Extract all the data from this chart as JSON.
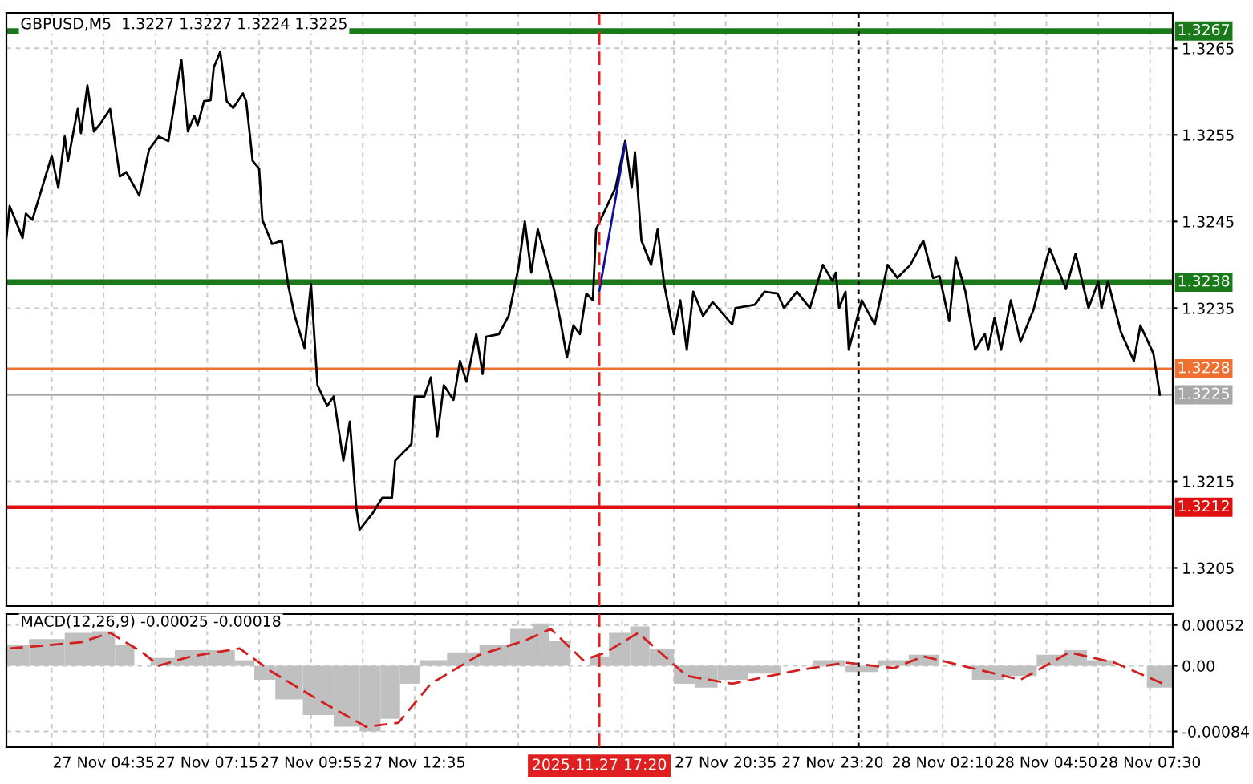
{
  "chart_data": [
    {
      "type": "line",
      "title": "GBPUSD,M5  1.3227 1.3227 1.3224 1.3225",
      "tick_labels": "y",
      "grid": true,
      "xlim": [
        "2025-11-27T02:05",
        "2025-11-28T08:05"
      ],
      "ylim": [
        1.32006,
        1.32691
      ],
      "xticks": [
        {
          "value": "2025-11-27T03:15",
          "label": null
        },
        {
          "value": "2025-11-27T04:35",
          "label": null
        },
        {
          "value": "2025-11-27T05:55",
          "label": null
        },
        {
          "value": "2025-11-27T07:15",
          "label": null
        },
        {
          "value": "2025-11-27T08:35",
          "label": null
        },
        {
          "value": "2025-11-27T09:55",
          "label": null
        },
        {
          "value": "2025-11-27T11:15",
          "label": null
        },
        {
          "value": "2025-11-27T12:35",
          "label": null
        },
        {
          "value": "2025-11-27T13:55",
          "label": null
        },
        {
          "value": "2025-11-27T15:15",
          "label": null
        },
        {
          "value": "2025-11-27T16:35",
          "label": null
        },
        {
          "value": "2025-11-27T17:55",
          "label": null
        },
        {
          "value": "2025-11-27T19:15",
          "label": null
        },
        {
          "value": "2025-11-27T20:35",
          "label": null
        },
        {
          "value": "2025-11-27T21:55",
          "label": null
        },
        {
          "value": "2025-11-27T23:20",
          "label": null
        },
        {
          "value": "2025-11-28T00:45",
          "label": null
        },
        {
          "value": "2025-11-28T02:10",
          "label": null
        },
        {
          "value": "2025-11-28T03:30",
          "label": null
        },
        {
          "value": "2025-11-28T04:50",
          "label": null
        },
        {
          "value": "2025-11-28T06:10",
          "label": null
        },
        {
          "value": "2025-11-28T07:30",
          "label": null
        }
      ],
      "yticks": [
        1.3205,
        1.3215,
        1.3235,
        1.3245,
        1.3255,
        1.3265
      ],
      "series": [
        {
          "color": "#000000",
          "x": [
            "2025-11-27T02:05",
            "2025-11-27T02:10",
            "2025-11-27T02:30",
            "2025-11-27T02:35",
            "2025-11-27T02:45",
            "2025-11-27T03:00",
            "2025-11-27T03:15",
            "2025-11-27T03:25",
            "2025-11-27T03:35",
            "2025-11-27T03:40",
            "2025-11-27T03:55",
            "2025-11-27T04:00",
            "2025-11-27T04:10",
            "2025-11-27T04:20",
            "2025-11-27T04:30",
            "2025-11-27T04:45",
            "2025-11-27T05:00",
            "2025-11-27T05:10",
            "2025-11-27T05:30",
            "2025-11-27T05:45",
            "2025-11-27T06:00",
            "2025-11-27T06:15",
            "2025-11-27T06:35",
            "2025-11-27T06:45",
            "2025-11-27T06:55",
            "2025-11-27T07:00",
            "2025-11-27T07:10",
            "2025-11-27T07:20",
            "2025-11-27T07:25",
            "2025-11-27T07:35",
            "2025-11-27T07:45",
            "2025-11-27T07:55",
            "2025-11-27T08:10",
            "2025-11-27T08:15",
            "2025-11-27T08:25",
            "2025-11-27T08:35",
            "2025-11-27T08:40",
            "2025-11-27T08:55",
            "2025-11-27T09:10",
            "2025-11-27T09:20",
            "2025-11-27T09:30",
            "2025-11-27T09:45",
            "2025-11-27T09:55",
            "2025-11-27T10:05",
            "2025-11-27T10:20",
            "2025-11-27T10:30",
            "2025-11-27T10:45",
            "2025-11-27T10:55",
            "2025-11-27T11:05",
            "2025-11-27T11:10",
            "2025-11-27T11:30",
            "2025-11-27T11:45",
            "2025-11-27T12:00",
            "2025-11-27T12:05",
            "2025-11-27T12:30",
            "2025-11-27T12:35",
            "2025-11-27T12:50",
            "2025-11-27T13:00",
            "2025-11-27T13:10",
            "2025-11-27T13:20",
            "2025-11-27T13:35",
            "2025-11-27T13:45",
            "2025-11-27T13:55",
            "2025-11-27T14:10",
            "2025-11-27T14:20",
            "2025-11-27T14:25",
            "2025-11-27T14:45",
            "2025-11-27T15:00",
            "2025-11-27T15:15",
            "2025-11-27T15:25",
            "2025-11-27T15:35",
            "2025-11-27T15:45",
            "2025-11-27T16:10",
            "2025-11-27T16:20",
            "2025-11-27T16:30",
            "2025-11-27T16:40",
            "2025-11-27T16:50",
            "2025-11-27T17:00",
            "2025-11-27T17:10",
            "2025-11-27T17:15",
            "2025-11-27T17:45",
            "2025-11-27T18:00",
            "2025-11-27T18:10",
            "2025-11-27T18:15",
            "2025-11-27T18:25",
            "2025-11-27T18:40",
            "2025-11-27T18:50",
            "2025-11-27T19:00",
            "2025-11-27T19:15",
            "2025-11-27T19:25",
            "2025-11-27T19:35",
            "2025-11-27T19:45",
            "2025-11-27T20:00",
            "2025-11-27T20:15",
            "2025-11-27T20:45",
            "2025-11-27T20:50",
            "2025-11-27T21:20",
            "2025-11-27T21:35",
            "2025-11-27T21:55",
            "2025-11-27T22:05",
            "2025-11-27T22:25",
            "2025-11-27T22:45",
            "2025-11-27T23:05",
            "2025-11-27T23:20",
            "2025-11-27T23:25",
            "2025-11-27T23:30",
            "2025-11-27T23:40",
            "2025-11-27T23:45",
            "2025-11-28T00:05",
            "2025-11-28T00:25",
            "2025-11-28T00:45",
            "2025-11-28T01:00",
            "2025-11-28T01:20",
            "2025-11-28T01:40",
            "2025-11-28T01:55",
            "2025-11-28T02:05",
            "2025-11-28T02:20",
            "2025-11-28T02:30",
            "2025-11-28T02:45",
            "2025-11-28T03:00",
            "2025-11-28T03:15",
            "2025-11-28T03:20",
            "2025-11-28T03:30",
            "2025-11-28T03:40",
            "2025-11-28T03:55",
            "2025-11-28T04:10",
            "2025-11-28T04:30",
            "2025-11-28T04:40",
            "2025-11-28T04:55",
            "2025-11-28T05:10",
            "2025-11-28T05:20",
            "2025-11-28T05:35",
            "2025-11-28T05:55",
            "2025-11-28T06:10",
            "2025-11-28T06:15",
            "2025-11-28T06:25",
            "2025-11-28T06:45",
            "2025-11-28T07:05",
            "2025-11-28T07:15",
            "2025-11-28T07:35",
            "2025-11-28T07:45"
          ],
          "values": [
            1.32431,
            1.32468,
            1.32431,
            1.32459,
            1.32452,
            1.32489,
            1.32526,
            1.32489,
            1.32548,
            1.3252,
            1.3258,
            1.32552,
            1.32607,
            1.32554,
            1.32563,
            1.3258,
            1.32502,
            1.32507,
            1.3248,
            1.32533,
            1.32548,
            1.32543,
            1.32637,
            1.32554,
            1.32572,
            1.32561,
            1.32589,
            1.3259,
            1.32628,
            1.32646,
            1.32589,
            1.32581,
            1.32598,
            1.32589,
            1.3252,
            1.32511,
            1.32452,
            1.32424,
            1.32428,
            1.32376,
            1.32341,
            1.32304,
            1.32378,
            1.32261,
            1.32237,
            1.32248,
            1.32174,
            1.32219,
            1.32119,
            1.32094,
            1.32113,
            1.32131,
            1.32131,
            1.32174,
            1.32193,
            1.32248,
            1.32248,
            1.3227,
            1.32202,
            1.32261,
            1.32244,
            1.32289,
            1.32265,
            1.3232,
            1.32274,
            1.32317,
            1.3232,
            1.32341,
            1.32396,
            1.3245,
            1.32391,
            1.32441,
            1.32372,
            1.32335,
            1.32293,
            1.3233,
            1.3232,
            1.32367,
            1.32359,
            1.32441,
            1.32489,
            1.32543,
            1.32489,
            1.3253,
            1.32428,
            1.324,
            1.32441,
            1.32378,
            1.3232,
            1.32359,
            1.32302,
            1.32369,
            1.32341,
            1.32357,
            1.32331,
            1.3235,
            1.32354,
            1.32369,
            1.32367,
            1.3235,
            1.32369,
            1.3235,
            1.324,
            1.32381,
            1.32391,
            1.3235,
            1.32369,
            1.32302,
            1.32359,
            1.32331,
            1.324,
            1.32385,
            1.324,
            1.32428,
            1.32385,
            1.32387,
            1.32335,
            1.32409,
            1.32369,
            1.32302,
            1.3232,
            1.32302,
            1.32339,
            1.32302,
            1.32359,
            1.32311,
            1.32348,
            1.32378,
            1.32419,
            1.32391,
            1.32372,
            1.32413,
            1.3235,
            1.32381,
            1.3235,
            1.32381,
            1.32322,
            1.32289,
            1.3233,
            1.32298,
            1.3225
          ]
        },
        {
          "color": "#1010a0",
          "x": [
            "2025-11-27T17:20",
            "2025-11-27T18:00"
          ],
          "values": [
            1.3237,
            1.3254
          ]
        }
      ],
      "ref_lines": [
        {
          "axis": "y",
          "value": 1.3267,
          "label": "1.3267",
          "color": "#1a7a1a",
          "line_style": "solid"
        },
        {
          "axis": "y",
          "value": 1.3238,
          "label": "1.3238",
          "color": "#1a7a1a",
          "line_style": "solid"
        },
        {
          "axis": "y",
          "value": 1.3228,
          "label": "1.3228",
          "color": "#f07030",
          "line_style": "solid"
        },
        {
          "axis": "y",
          "value": 1.3225,
          "label": "1.3225",
          "color": "#a8a8a8",
          "line_style": "solid"
        },
        {
          "axis": "y",
          "value": 1.3212,
          "label": "1.3212",
          "color": "#e01010",
          "line_style": "solid"
        },
        {
          "axis": "x",
          "value": "2025-11-27T17:20",
          "color": "#e02020",
          "line_style": "dashed"
        },
        {
          "axis": "x",
          "value": "2025-11-28T00:00",
          "color": "#000000",
          "line_style": "dotted"
        }
      ]
    },
    {
      "type": "line",
      "title": "MACD(12,26,9) -0.00025 -0.00018",
      "grid": true,
      "xlim": [
        "2025-11-27T02:05",
        "2025-11-28T08:05"
      ],
      "ylim": [
        -0.00104,
        0.00066
      ],
      "xticks": [
        {
          "value": "2025-11-27T03:15",
          "label": null
        },
        {
          "value": "2025-11-27T04:35",
          "label": "27 Nov 04:35"
        },
        {
          "value": "2025-11-27T05:55",
          "label": null
        },
        {
          "value": "2025-11-27T07:15",
          "label": "27 Nov 07:15"
        },
        {
          "value": "2025-11-27T08:35",
          "label": null
        },
        {
          "value": "2025-11-27T09:55",
          "label": "27 Nov 09:55"
        },
        {
          "value": "2025-11-27T11:15",
          "label": null
        },
        {
          "value": "2025-11-27T12:35",
          "label": "27 Nov 12:35"
        },
        {
          "value": "2025-11-27T13:55",
          "label": null
        },
        {
          "value": "2025-11-27T15:15",
          "label": null
        },
        {
          "value": "2025-11-27T16:35",
          "label": null
        },
        {
          "value": "2025-11-27T17:55",
          "label": null
        },
        {
          "value": "2025-11-27T19:15",
          "label": null
        },
        {
          "value": "2025-11-27T20:35",
          "label": "27 Nov 20:35"
        },
        {
          "value": "2025-11-27T21:55",
          "label": null
        },
        {
          "value": "2025-11-27T23:20",
          "label": "27 Nov 23:20"
        },
        {
          "value": "2025-11-28T00:45",
          "label": null
        },
        {
          "value": "2025-11-28T02:10",
          "label": "28 Nov 02:10"
        },
        {
          "value": "2025-11-28T03:30",
          "label": null
        },
        {
          "value": "2025-11-28T04:50",
          "label": "28 Nov 04:50"
        },
        {
          "value": "2025-11-28T06:10",
          "label": null
        },
        {
          "value": "2025-11-28T07:30",
          "label": "28 Nov 07:30"
        }
      ],
      "yticks": [
        {
          "value": 0.00052,
          "label": "0.00052"
        },
        {
          "value": 0,
          "label": "0.00"
        },
        {
          "value": -0.00084,
          "label": "-0.00084"
        }
      ],
      "series": [
        {
          "type": "bar",
          "color": "#c0c0c0",
          "x": [
            "2025-11-27T02:10",
            "2025-11-27T03:10",
            "2025-11-27T04:00",
            "2025-11-27T04:35",
            "2025-11-27T05:10",
            "2025-11-27T05:35",
            "2025-11-27T06:00",
            "2025-11-27T06:50",
            "2025-11-27T07:40",
            "2025-11-27T08:15",
            "2025-11-27T08:40",
            "2025-11-27T09:20",
            "2025-11-27T10:05",
            "2025-11-27T10:55",
            "2025-11-27T11:25",
            "2025-11-27T12:00",
            "2025-11-27T12:25",
            "2025-11-27T13:00",
            "2025-11-27T13:50",
            "2025-11-27T14:40",
            "2025-11-27T15:25",
            "2025-11-27T15:50",
            "2025-11-27T16:15",
            "2025-11-27T16:55",
            "2025-11-27T17:15",
            "2025-11-27T17:55",
            "2025-11-27T18:20",
            "2025-11-27T18:55",
            "2025-11-27T19:35",
            "2025-11-27T20:00",
            "2025-11-27T20:45",
            "2025-11-27T21:35",
            "2025-11-27T22:25",
            "2025-11-27T23:15",
            "2025-11-28T00:05",
            "2025-11-28T00:55",
            "2025-11-28T01:40",
            "2025-11-28T02:30",
            "2025-11-28T03:20",
            "2025-11-28T04:10",
            "2025-11-28T05:00",
            "2025-11-28T05:35",
            "2025-11-28T06:10",
            "2025-11-28T07:00",
            "2025-11-28T07:50"
          ],
          "values": [
            0.00027,
            0.00034,
            0.00042,
            0.00047,
            0.00027,
            0,
            0.0001,
            0.0002,
            0.0002,
            7e-05,
            -0.00018,
            -0.00043,
            -0.00063,
            -0.00078,
            -0.00084,
            -0.00068,
            -0.00023,
            7e-05,
            0.00017,
            0.00027,
            0.00047,
            0.00054,
            0.00032,
            null,
            0.00012,
            0.00042,
            0.0005,
            0.00022,
            -0.00023,
            -0.00028,
            -0.00018,
            -0.0001,
            null,
            7e-05,
            -8e-05,
            7e-05,
            0.00014,
            0,
            -0.00018,
            -0.00013,
            0.00014,
            0.0002,
            7e-05,
            null,
            -0.00028
          ]
        },
        {
          "type": "line",
          "color": "#d02020",
          "line_style": "dashed",
          "x": [
            "2025-11-27T02:10",
            "2025-11-27T04:00",
            "2025-11-27T04:45",
            "2025-11-27T05:35",
            "2025-11-27T06:00",
            "2025-11-27T06:50",
            "2025-11-27T08:05",
            "2025-11-27T08:55",
            "2025-11-27T10:05",
            "2025-11-27T11:20",
            "2025-11-27T12:10",
            "2025-11-27T13:00",
            "2025-11-27T14:15",
            "2025-11-27T15:25",
            "2025-11-27T16:05",
            "2025-11-27T16:55",
            "2025-11-27T17:30",
            "2025-11-27T18:20",
            "2025-11-27T19:35",
            "2025-11-27T20:45",
            "2025-11-27T22:25",
            "2025-11-27T23:40",
            "2025-11-28T00:55",
            "2025-11-28T01:40",
            "2025-11-28T02:55",
            "2025-11-28T04:10",
            "2025-11-28T05:25",
            "2025-11-28T06:35",
            "2025-11-28T07:50"
          ],
          "values": [
            0.00022,
            0.0003,
            0.00042,
            0.00017,
            0,
            0.00012,
            0.00022,
            -8e-05,
            -0.00043,
            -0.00078,
            -0.00073,
            -0.00023,
            0.00014,
            0.00032,
            0.00047,
            7e-05,
            0.00017,
            0.00042,
            -0.00013,
            -0.00023,
            -6e-05,
            4e-05,
            -3e-05,
            0.00012,
            -3e-05,
            -0.00018,
            0.00017,
            4e-05,
            -0.00023
          ]
        }
      ],
      "ref_lines": [
        {
          "axis": "x",
          "value": "2025-11-27T17:20",
          "label": "2025.11.27 17:20",
          "color": "#e02020",
          "line_style": "dashed"
        },
        {
          "axis": "x",
          "value": "2025-11-28T00:00",
          "color": "#000000",
          "line_style": "dotted"
        }
      ]
    }
  ]
}
